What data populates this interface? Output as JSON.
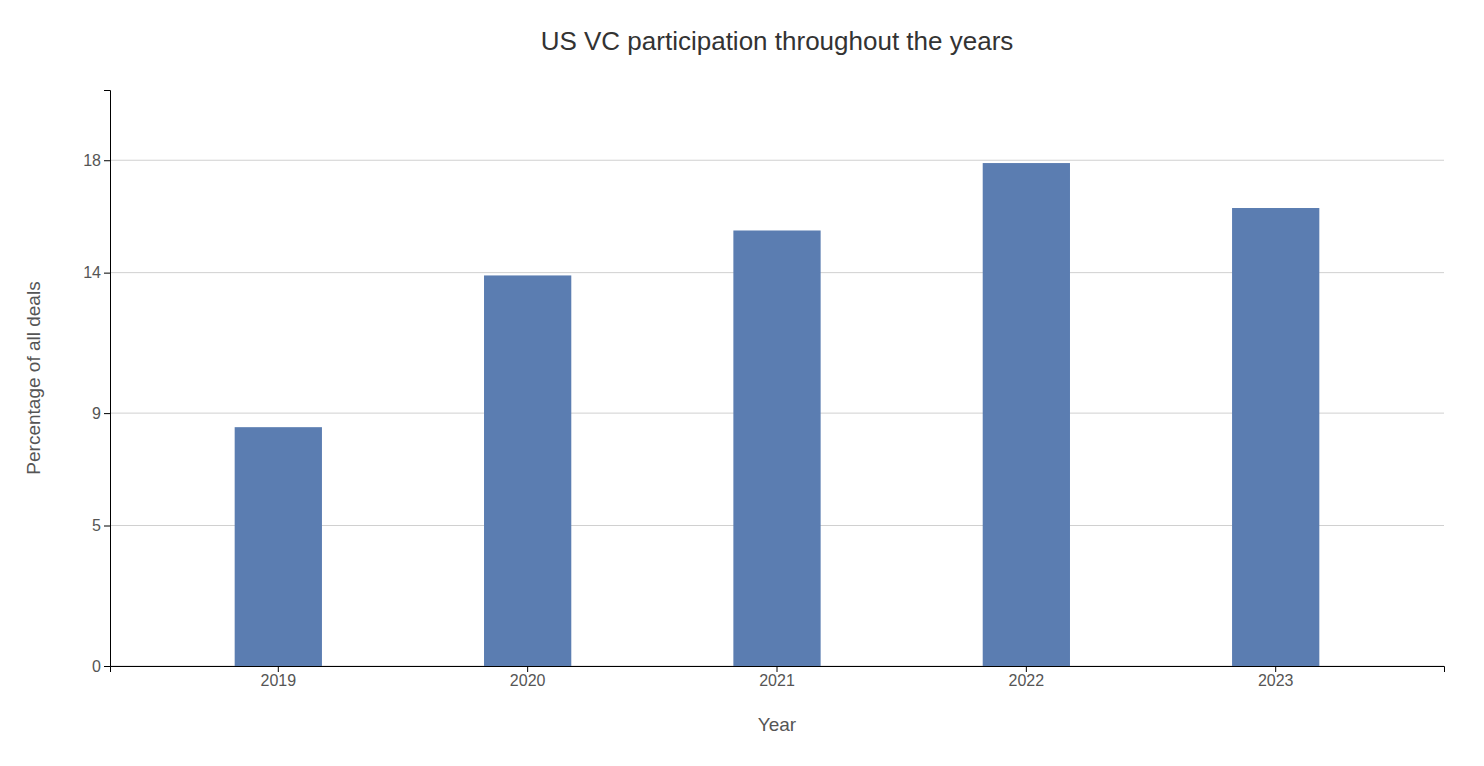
{
  "chart_data": {
    "type": "bar",
    "title": "US VC participation throughout the years",
    "xlabel": "Year",
    "ylabel": "Percentage of all deals",
    "categories": [
      "2019",
      "2020",
      "2021",
      "2022",
      "2023"
    ],
    "values": [
      8.5,
      13.9,
      15.5,
      17.9,
      16.3
    ],
    "color": "#5b7db1",
    "ylim": [
      0,
      20.5
    ],
    "yticks": [
      0,
      5,
      9,
      14,
      18
    ],
    "grid": true
  }
}
